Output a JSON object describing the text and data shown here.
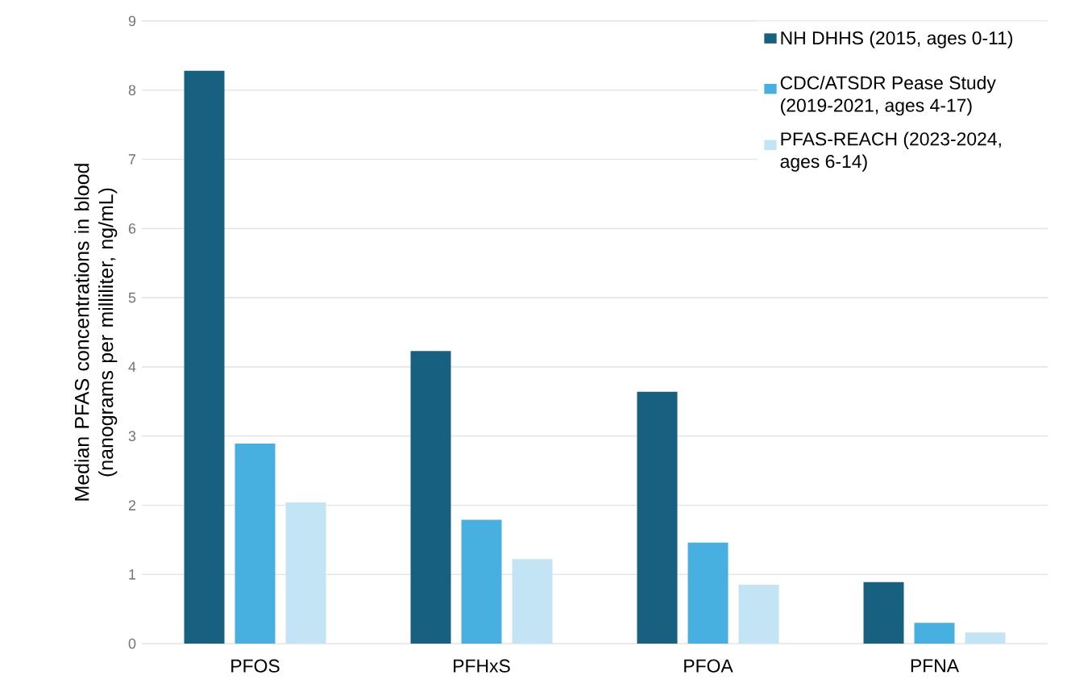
{
  "chart_data": {
    "type": "bar",
    "ylabel": "Median PFAS concentrations in blood (nanograms per milliliter, ng/mL)",
    "categories": [
      "PFOS",
      "PFHxS",
      "PFOA",
      "PFNA"
    ],
    "series": [
      {
        "name": "NH DHHS (2015, ages 0-11)",
        "color": "#17607f",
        "values": [
          8.28,
          4.23,
          3.64,
          0.89
        ]
      },
      {
        "name": "CDC/ATSDR Pease Study (2019-2021, ages 4-17)",
        "color": "#47b0e0",
        "values": [
          2.89,
          1.79,
          1.46,
          0.3
        ]
      },
      {
        "name": "PFAS-REACH (2023-2024, ages 6-14)",
        "color": "#c2e4f4",
        "values": [
          2.04,
          1.22,
          0.85,
          0.16
        ]
      }
    ],
    "ylim": [
      0,
      9
    ],
    "yticks": [
      0,
      1,
      2,
      3,
      4,
      5,
      6,
      7,
      8,
      9
    ],
    "grid": "y",
    "legend": "top right"
  }
}
